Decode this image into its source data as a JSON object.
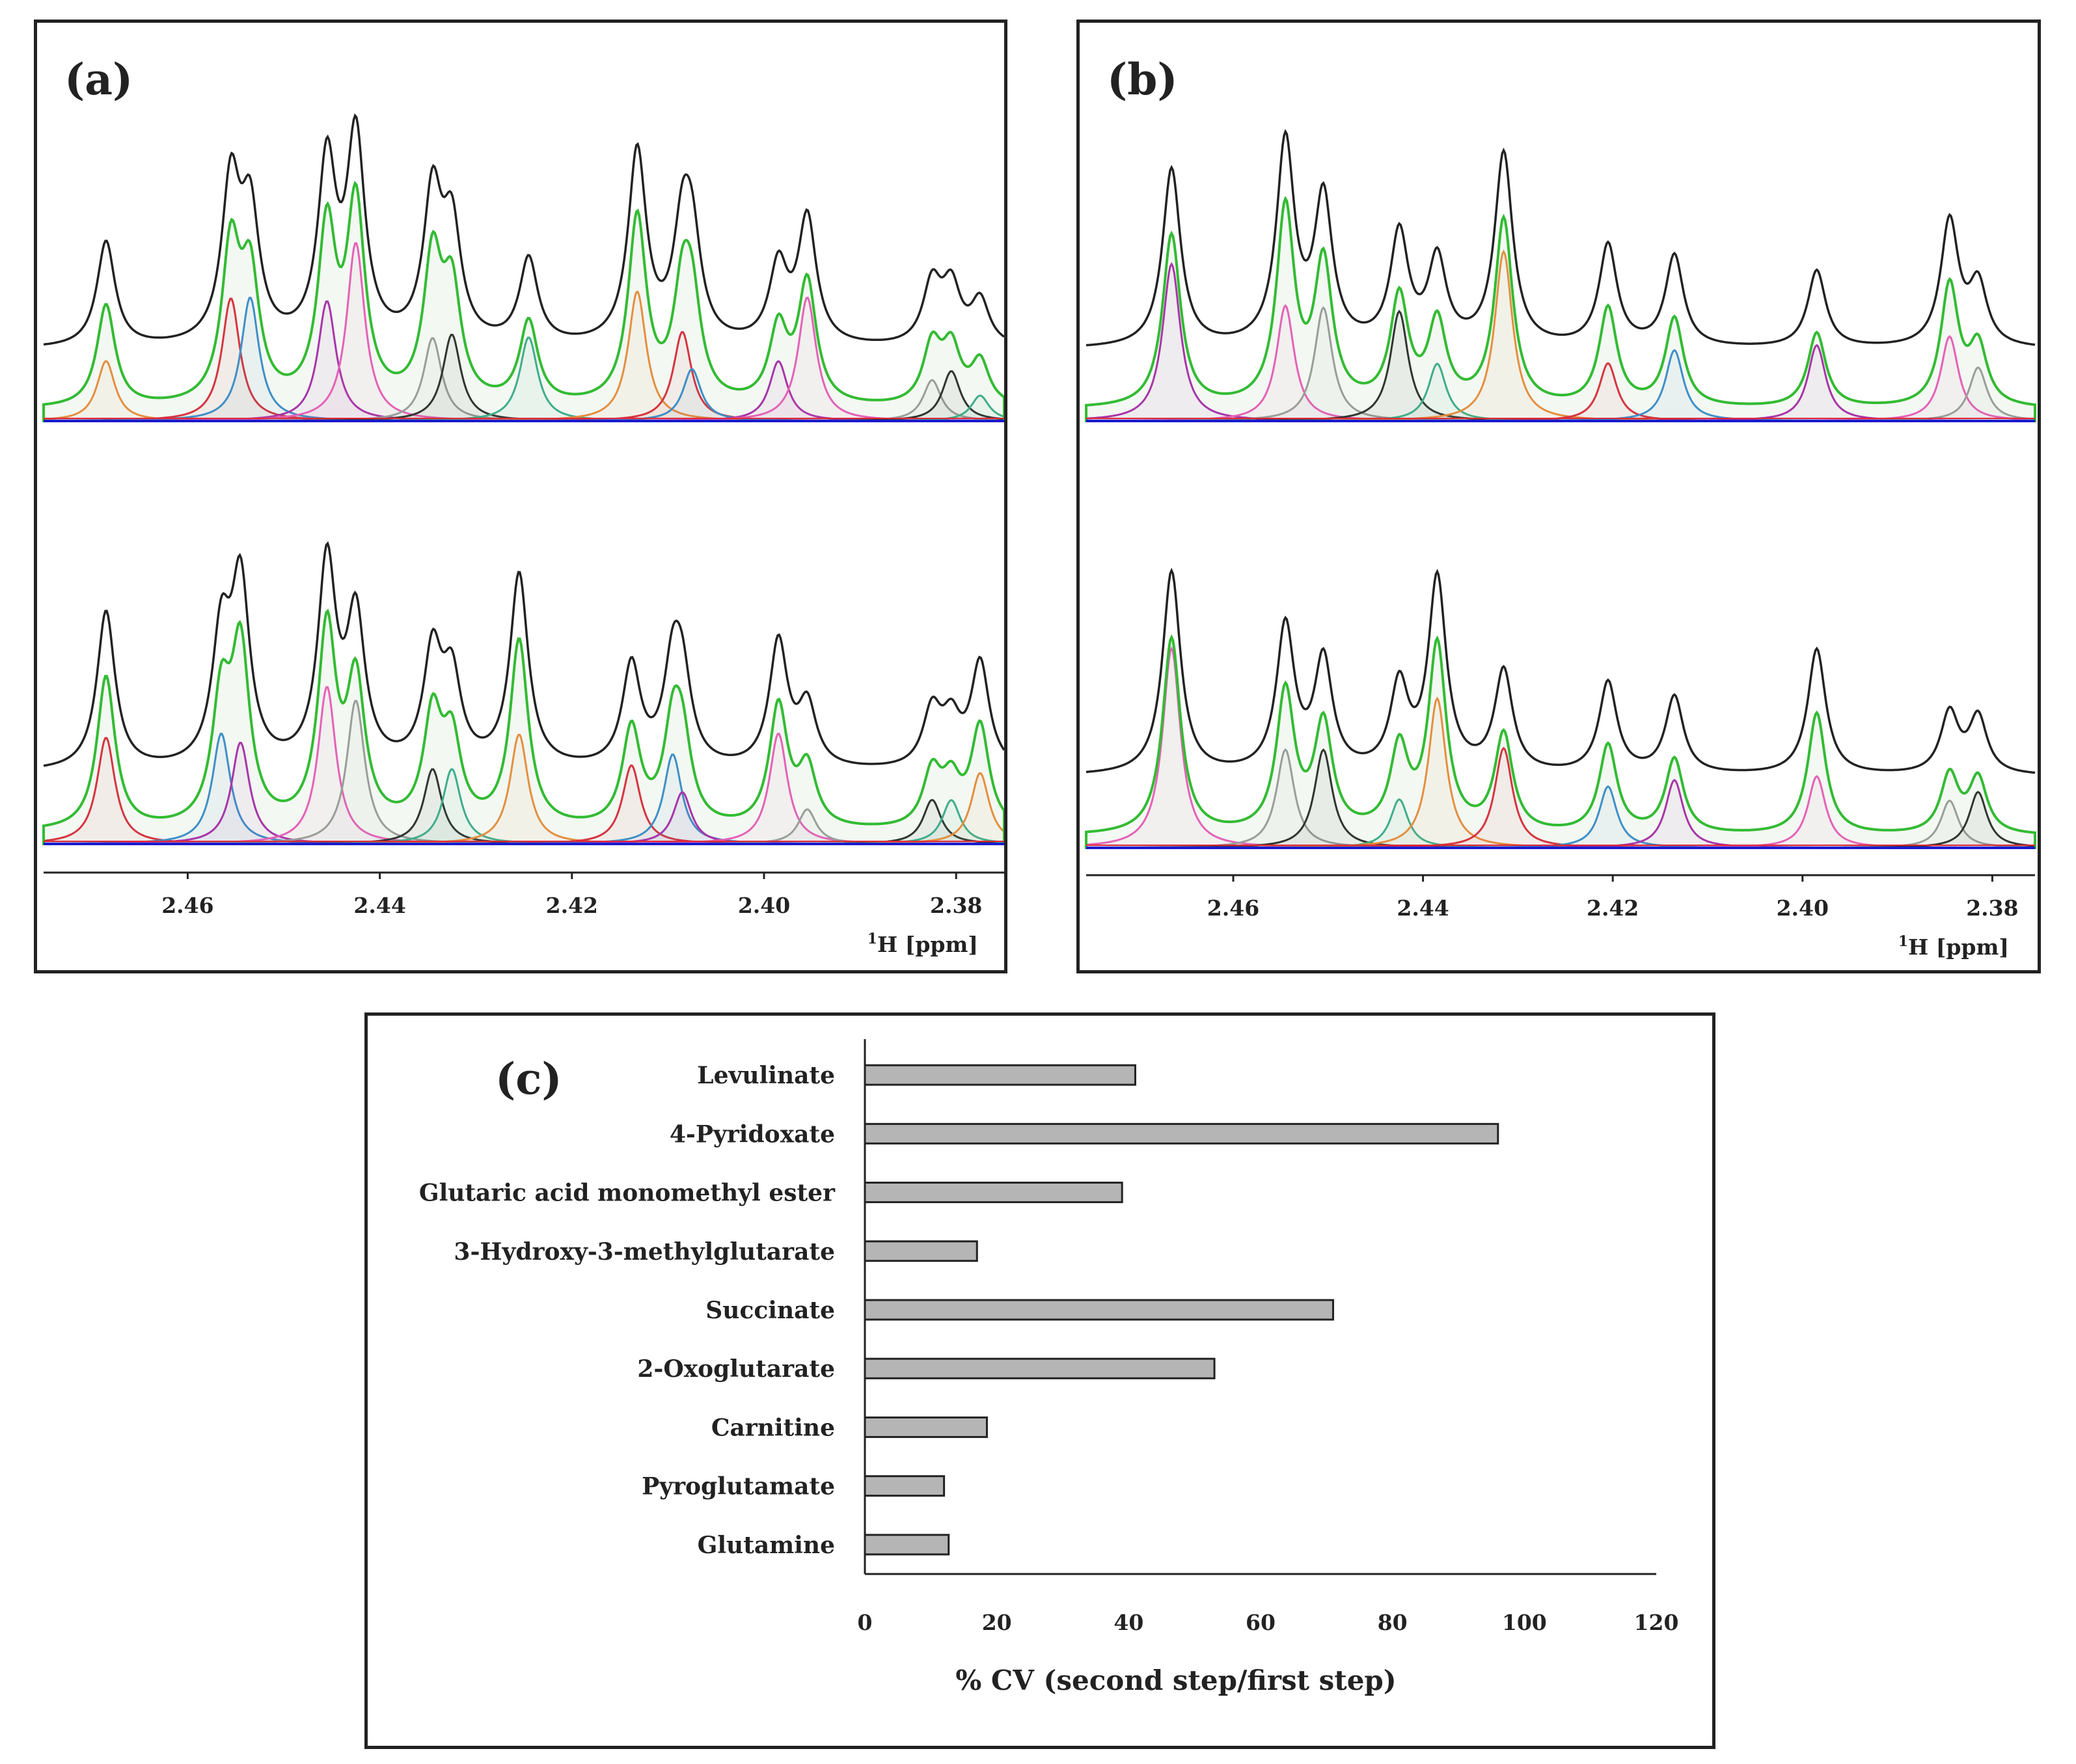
{
  "panel_a": {
    "label": "(a)",
    "x_ticks": [
      "2.46",
      "2.44",
      "2.42",
      "2.40",
      "2.38"
    ],
    "x_unit_sup": "1",
    "x_unit": "H [ppm]"
  },
  "panel_b": {
    "label": "(b)",
    "x_ticks": [
      "2.46",
      "2.44",
      "2.42",
      "2.40",
      "2.38"
    ],
    "x_unit_sup": "1",
    "x_unit": "H [ppm]"
  },
  "colors": {
    "experimental": "#222222",
    "fit_total": "#33bb33",
    "baseline": "#1a1acc",
    "components": [
      "#ee8833",
      "#dd2233",
      "#3388cc",
      "#aa22aa",
      "#ee55bb",
      "#999999",
      "#222222",
      "#33aa88"
    ],
    "bar_fill": "#b5b5b5"
  },
  "chart_data": [
    {
      "type": "line",
      "panel": "(a)",
      "x_axis": {
        "reversed": true,
        "xlim": [
          2.475,
          2.375
        ],
        "ticks": [
          2.46,
          2.44,
          2.42,
          2.4,
          2.38
        ]
      },
      "spectra": [
        {
          "row": "top",
          "peaks_ppm": [
            2.4685,
            2.4555,
            2.4535,
            2.4455,
            2.4425,
            2.4345,
            2.4325,
            2.4245,
            2.4132,
            2.4085,
            2.4075,
            2.3985,
            2.3955,
            2.3825,
            2.3805,
            2.3775
          ]
        },
        {
          "row": "bottom",
          "peaks_ppm": [
            2.4685,
            2.4565,
            2.4545,
            2.4455,
            2.4425,
            2.4345,
            2.4325,
            2.4255,
            2.4138,
            2.4095,
            2.4085,
            2.3985,
            2.3955,
            2.3825,
            2.3805,
            2.3775
          ]
        }
      ]
    },
    {
      "type": "line",
      "panel": "(b)",
      "x_axis": {
        "reversed": true,
        "xlim": [
          2.4755,
          2.3755
        ],
        "ticks": [
          2.46,
          2.44,
          2.42,
          2.4,
          2.38
        ]
      },
      "spectra": [
        {
          "row": "top",
          "peaks_ppm": [
            2.4665,
            2.4545,
            2.4505,
            2.4425,
            2.4385,
            2.4315,
            2.4205,
            2.4135,
            2.3985,
            2.3845,
            2.3815
          ]
        },
        {
          "row": "bottom",
          "peaks_ppm": [
            2.4665,
            2.4545,
            2.4505,
            2.4425,
            2.4385,
            2.4315,
            2.4205,
            2.4135,
            2.3985,
            2.3845,
            2.3815
          ]
        }
      ]
    },
    {
      "type": "bar",
      "panel": "(c)",
      "label": "(c)",
      "orientation": "horizontal",
      "categories": [
        "Levulinate",
        "4-Pyridoxate",
        "Glutaric acid monomethyl ester",
        "3-Hydroxy-3-methylglutarate",
        "Succinate",
        "2-Oxoglutarate",
        "Carnitine",
        "Pyroglutamate",
        "Glutamine"
      ],
      "values": [
        41,
        96,
        39,
        17,
        71,
        53,
        18.5,
        12,
        12.7
      ],
      "xlim": [
        0,
        120
      ],
      "x_ticks": [
        "0",
        "20",
        "40",
        "60",
        "80",
        "100",
        "120"
      ],
      "xlabel": "% CV (second step/first step)",
      "grid": false
    }
  ]
}
